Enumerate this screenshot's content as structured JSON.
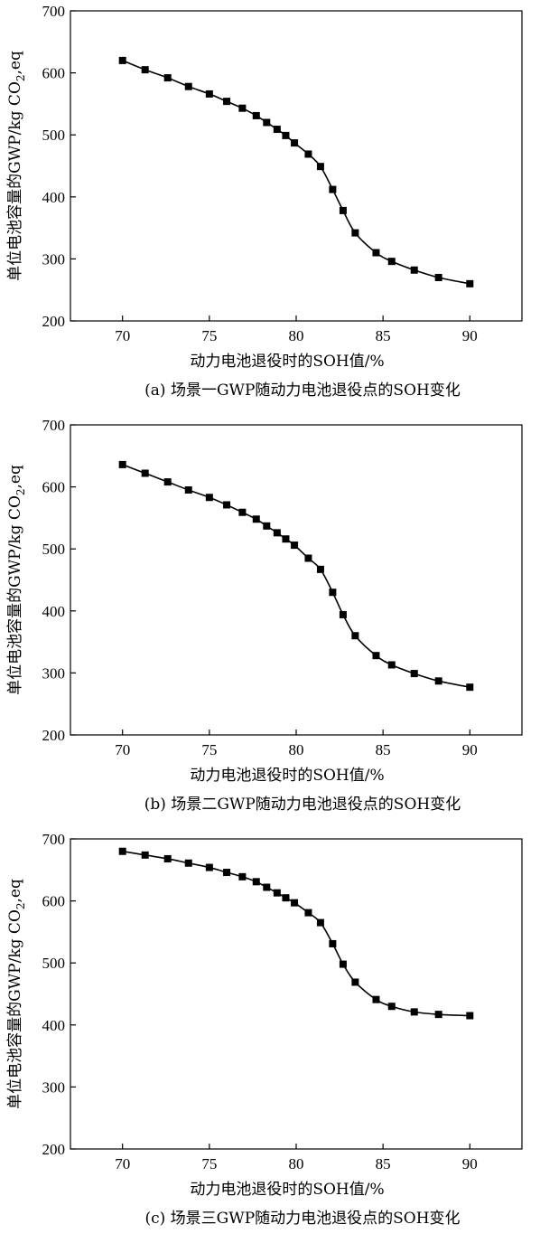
{
  "chart_data": [
    {
      "type": "line",
      "caption": "(a) 场景一GWP随动力电池退役点的SOH变化",
      "xlabel": "动力电池退役时的SOH值/%",
      "ylabel_main": "单位电池容量的GWP/kg CO",
      "ylabel_sub": "2",
      "ylabel_end": ",eq",
      "xlim": [
        67,
        93
      ],
      "ylim": [
        200,
        700
      ],
      "xticks": [
        "70",
        "75",
        "80",
        "85",
        "90"
      ],
      "yticks": [
        "200",
        "300",
        "400",
        "500",
        "600",
        "700"
      ],
      "series": [
        {
          "marker": "square",
          "x": [
            70,
            71.3,
            72.6,
            73.8,
            75,
            76,
            76.9,
            77.7,
            78.3,
            78.9,
            79.4,
            79.9,
            80.7,
            81.4,
            82.1,
            82.7,
            83.4,
            84.6,
            85.5,
            86.8,
            88.2,
            90
          ],
          "y": [
            620,
            605,
            592,
            578,
            566,
            554,
            543,
            531,
            520,
            509,
            499,
            487,
            469,
            449,
            412,
            378,
            342,
            310,
            296,
            282,
            270,
            260
          ]
        }
      ]
    },
    {
      "type": "line",
      "caption": "(b) 场景二GWP随动力电池退役点的SOH变化",
      "xlabel": "动力电池退役时的SOH值/%",
      "ylabel_main": "单位电池容量的GWP/kg CO",
      "ylabel_sub": "2",
      "ylabel_end": ",eq",
      "xlim": [
        67,
        93
      ],
      "ylim": [
        200,
        700
      ],
      "xticks": [
        "70",
        "75",
        "80",
        "85",
        "90"
      ],
      "yticks": [
        "200",
        "300",
        "400",
        "500",
        "600",
        "700"
      ],
      "series": [
        {
          "marker": "square",
          "x": [
            70,
            71.3,
            72.6,
            73.8,
            75,
            76,
            76.9,
            77.7,
            78.3,
            78.9,
            79.4,
            79.9,
            80.7,
            81.4,
            82.1,
            82.7,
            83.4,
            84.6,
            85.5,
            86.8,
            88.2,
            90
          ],
          "y": [
            636,
            622,
            608,
            595,
            583,
            571,
            559,
            548,
            537,
            526,
            516,
            506,
            485,
            467,
            430,
            394,
            360,
            328,
            313,
            299,
            287,
            277
          ]
        }
      ]
    },
    {
      "type": "line",
      "caption": "(c) 场景三GWP随动力电池退役点的SOH变化",
      "xlabel": "动力电池退役时的SOH值/%",
      "ylabel_main": "单位电池容量的GWP/kg CO",
      "ylabel_sub": "2",
      "ylabel_end": ",eq",
      "xlim": [
        67,
        93
      ],
      "ylim": [
        200,
        700
      ],
      "xticks": [
        "70",
        "75",
        "80",
        "85",
        "90"
      ],
      "yticks": [
        "200",
        "300",
        "400",
        "500",
        "600",
        "700"
      ],
      "series": [
        {
          "marker": "square",
          "x": [
            70,
            71.3,
            72.6,
            73.8,
            75,
            76,
            76.9,
            77.7,
            78.3,
            78.9,
            79.4,
            79.9,
            80.7,
            81.4,
            82.1,
            82.7,
            83.4,
            84.6,
            85.5,
            86.8,
            88.2,
            90
          ],
          "y": [
            680,
            674,
            668,
            661,
            654,
            646,
            639,
            631,
            622,
            613,
            605,
            597,
            581,
            565,
            531,
            498,
            469,
            441,
            430,
            421,
            417,
            415
          ]
        }
      ]
    }
  ]
}
